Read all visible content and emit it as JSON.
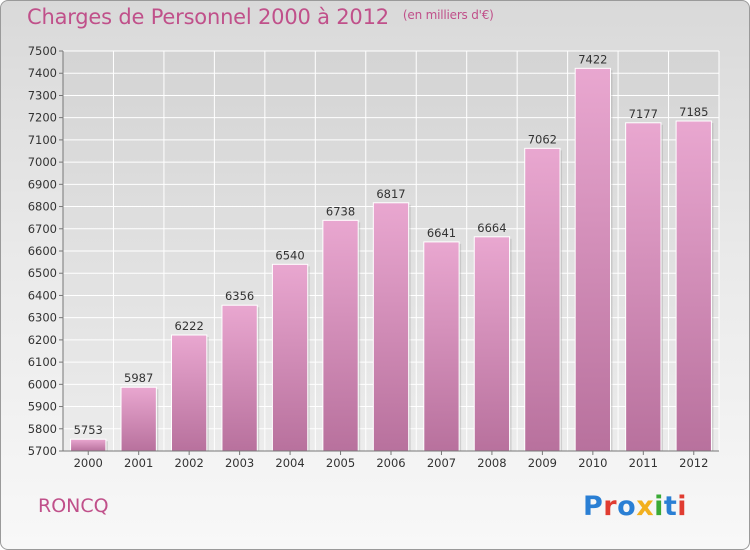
{
  "title": "Charges de Personnel 2000 à 2012",
  "subtitle": "(en milliers d'€)",
  "commune": "RONCQ",
  "logo": {
    "text": "Proxiti",
    "letters": [
      {
        "char": "P",
        "color": "#2a7fd4"
      },
      {
        "char": "r",
        "color": "#e03c31"
      },
      {
        "char": "o",
        "color": "#2a7fd4"
      },
      {
        "char": "x",
        "color": "#f2b01e"
      },
      {
        "char": "i",
        "color": "#3aaa35"
      },
      {
        "char": "t",
        "color": "#2a7fd4"
      },
      {
        "char": "i",
        "color": "#e03c31"
      }
    ]
  },
  "colors": {
    "bar_top": "#e9a7d0",
    "bar_bottom": "#b8719d",
    "accent": "#c0508a"
  },
  "chart_data": {
    "type": "bar",
    "categories": [
      "2000",
      "2001",
      "2002",
      "2003",
      "2004",
      "2005",
      "2006",
      "2007",
      "2008",
      "2009",
      "2010",
      "2011",
      "2012"
    ],
    "values": [
      5753,
      5987,
      6222,
      6356,
      6540,
      6738,
      6817,
      6641,
      6664,
      7062,
      7422,
      7177,
      7185
    ],
    "ylim": [
      5700,
      7500
    ],
    "yticks": [
      5700,
      5800,
      5900,
      6000,
      6100,
      6200,
      6300,
      6400,
      6500,
      6600,
      6700,
      6800,
      6900,
      7000,
      7100,
      7200,
      7300,
      7400,
      7500
    ],
    "grid": true,
    "legend": "none"
  }
}
